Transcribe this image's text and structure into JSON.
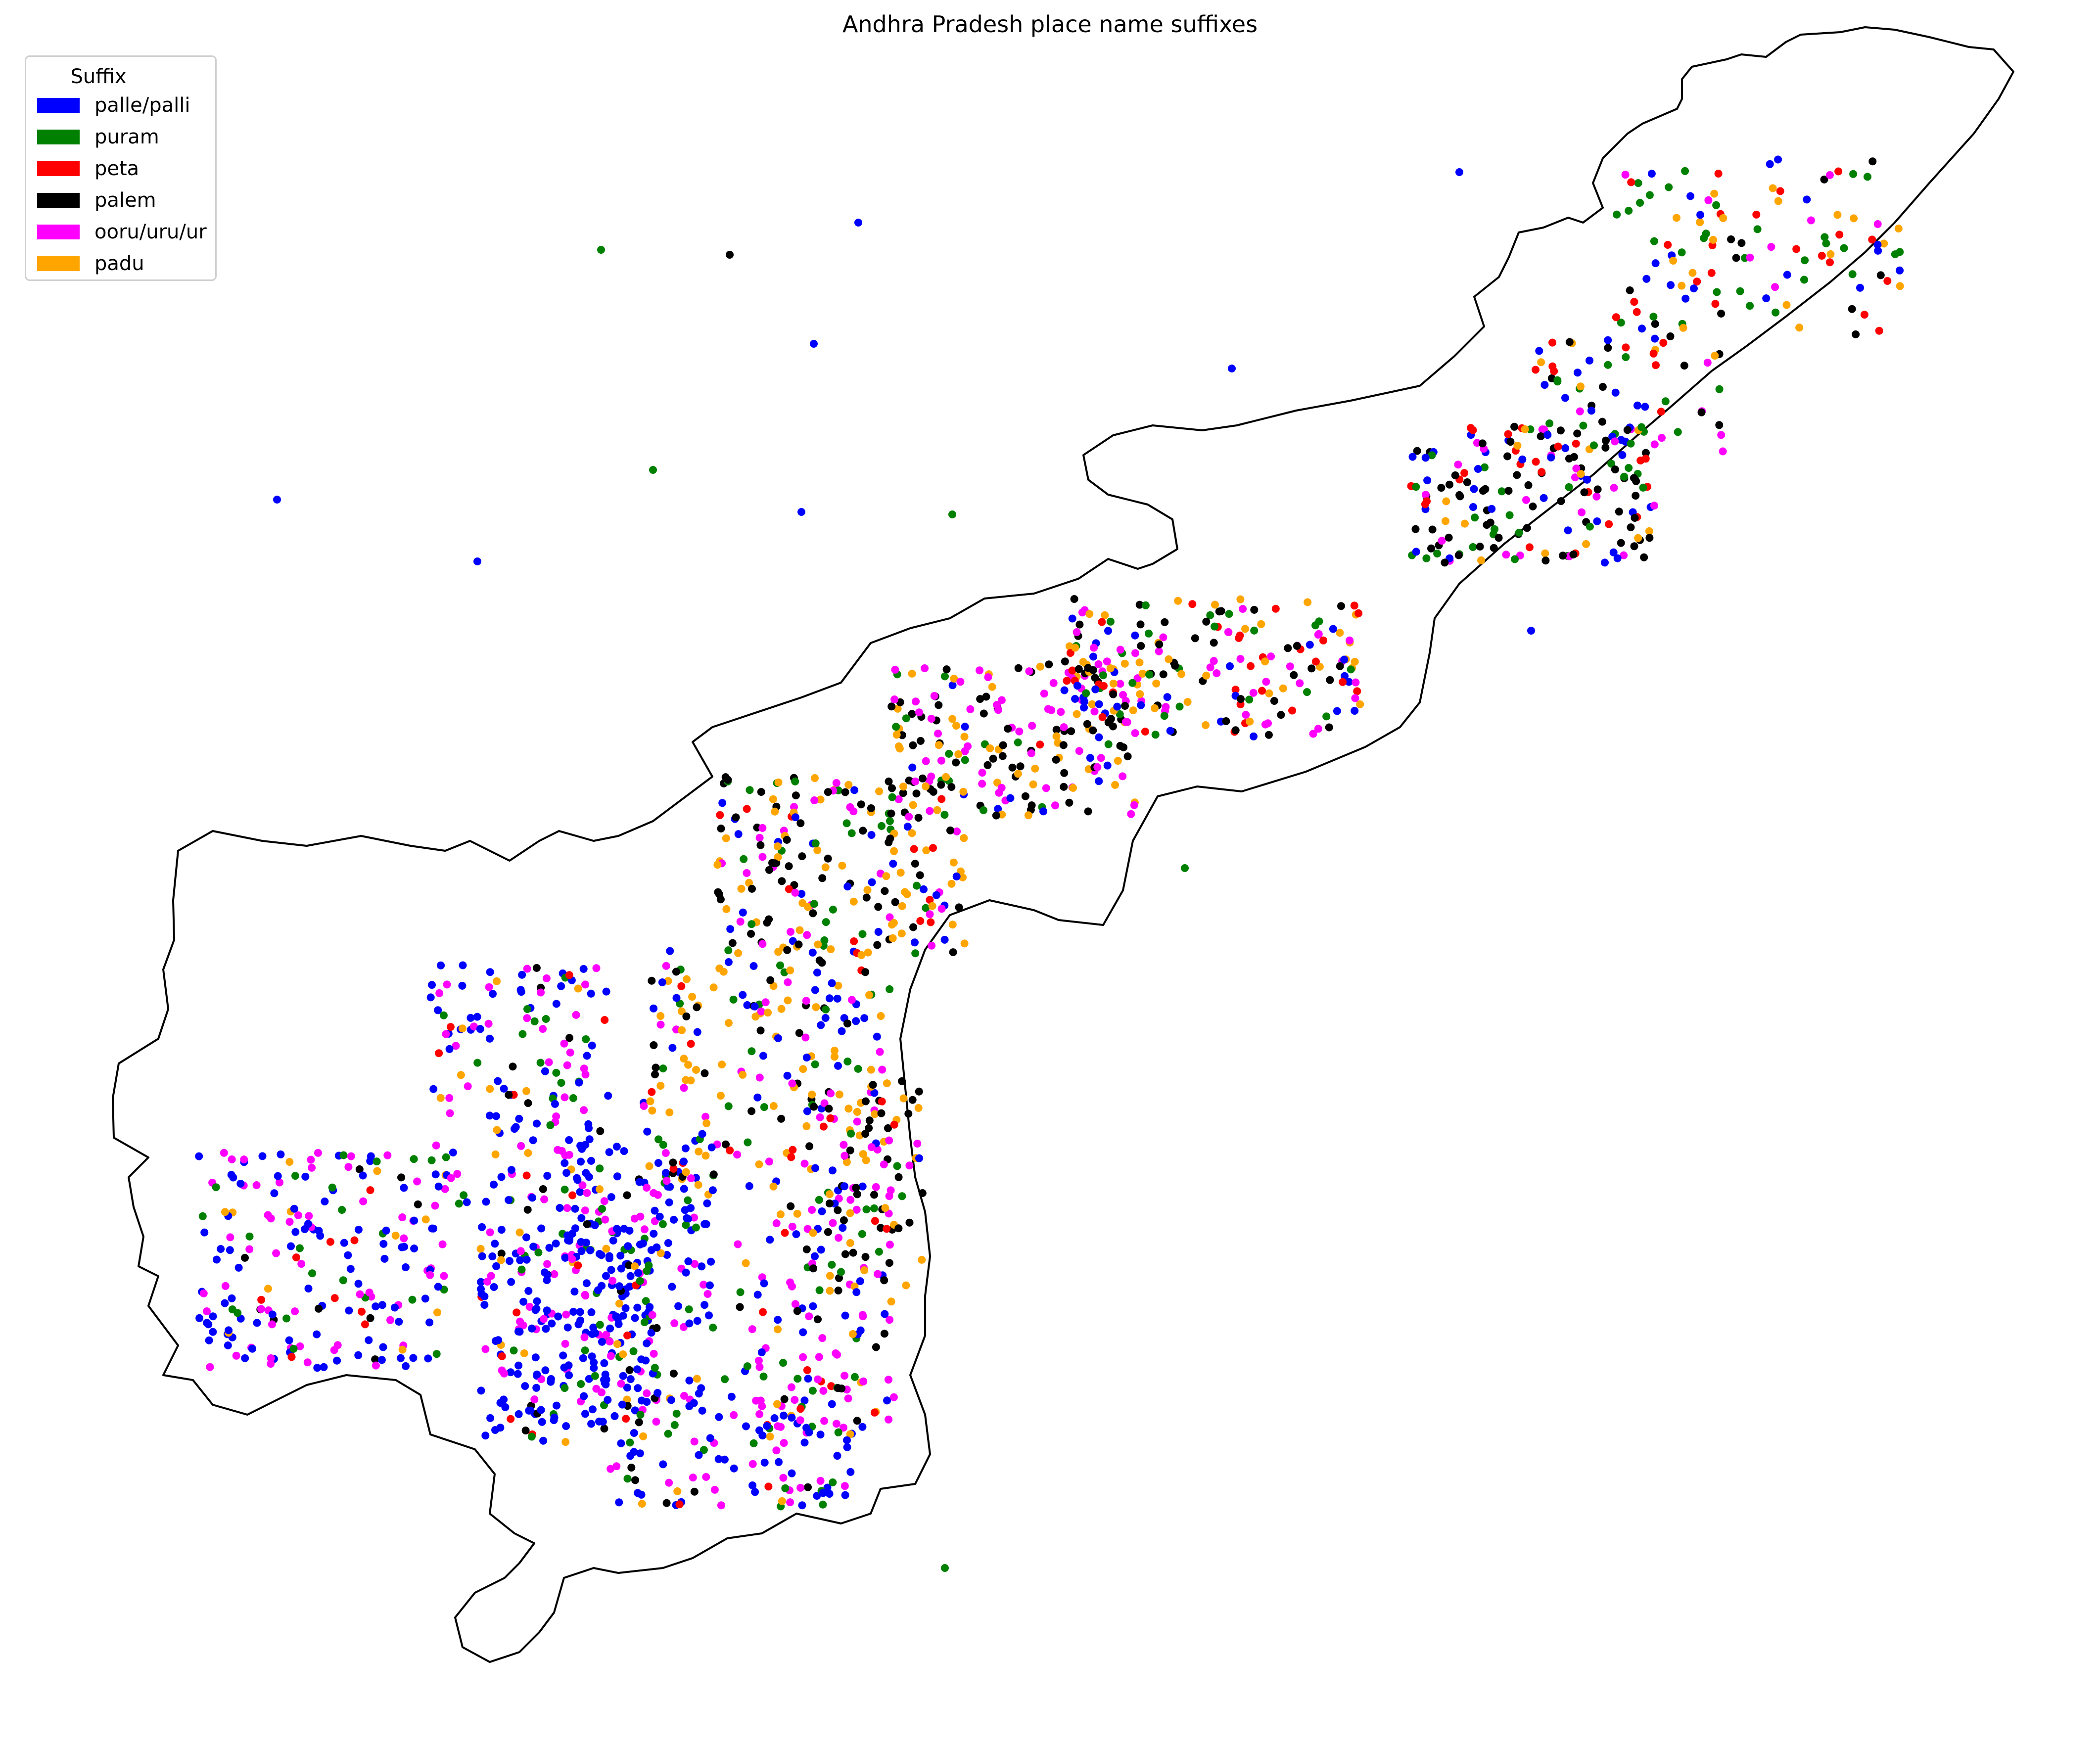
{
  "title": "Andhra Pradesh place name suffixes",
  "legend": {
    "title": "Suffix",
    "items": [
      {
        "label": "palle/palli",
        "color": "#0000ff"
      },
      {
        "label": "puram",
        "color": "#008000"
      },
      {
        "label": "peta",
        "color": "#ff0000"
      },
      {
        "label": "palem",
        "color": "#000000"
      },
      {
        "label": "ooru/uru/ur",
        "color": "#ff00ff"
      },
      {
        "label": "padu",
        "color": "#ffa500"
      }
    ],
    "placement": "upper-left"
  },
  "map": {
    "region": "Andhra Pradesh state boundary",
    "boundary_color": "#000000",
    "background": "#ffffff",
    "axes_visible": false,
    "marker": "filled circle"
  }
}
